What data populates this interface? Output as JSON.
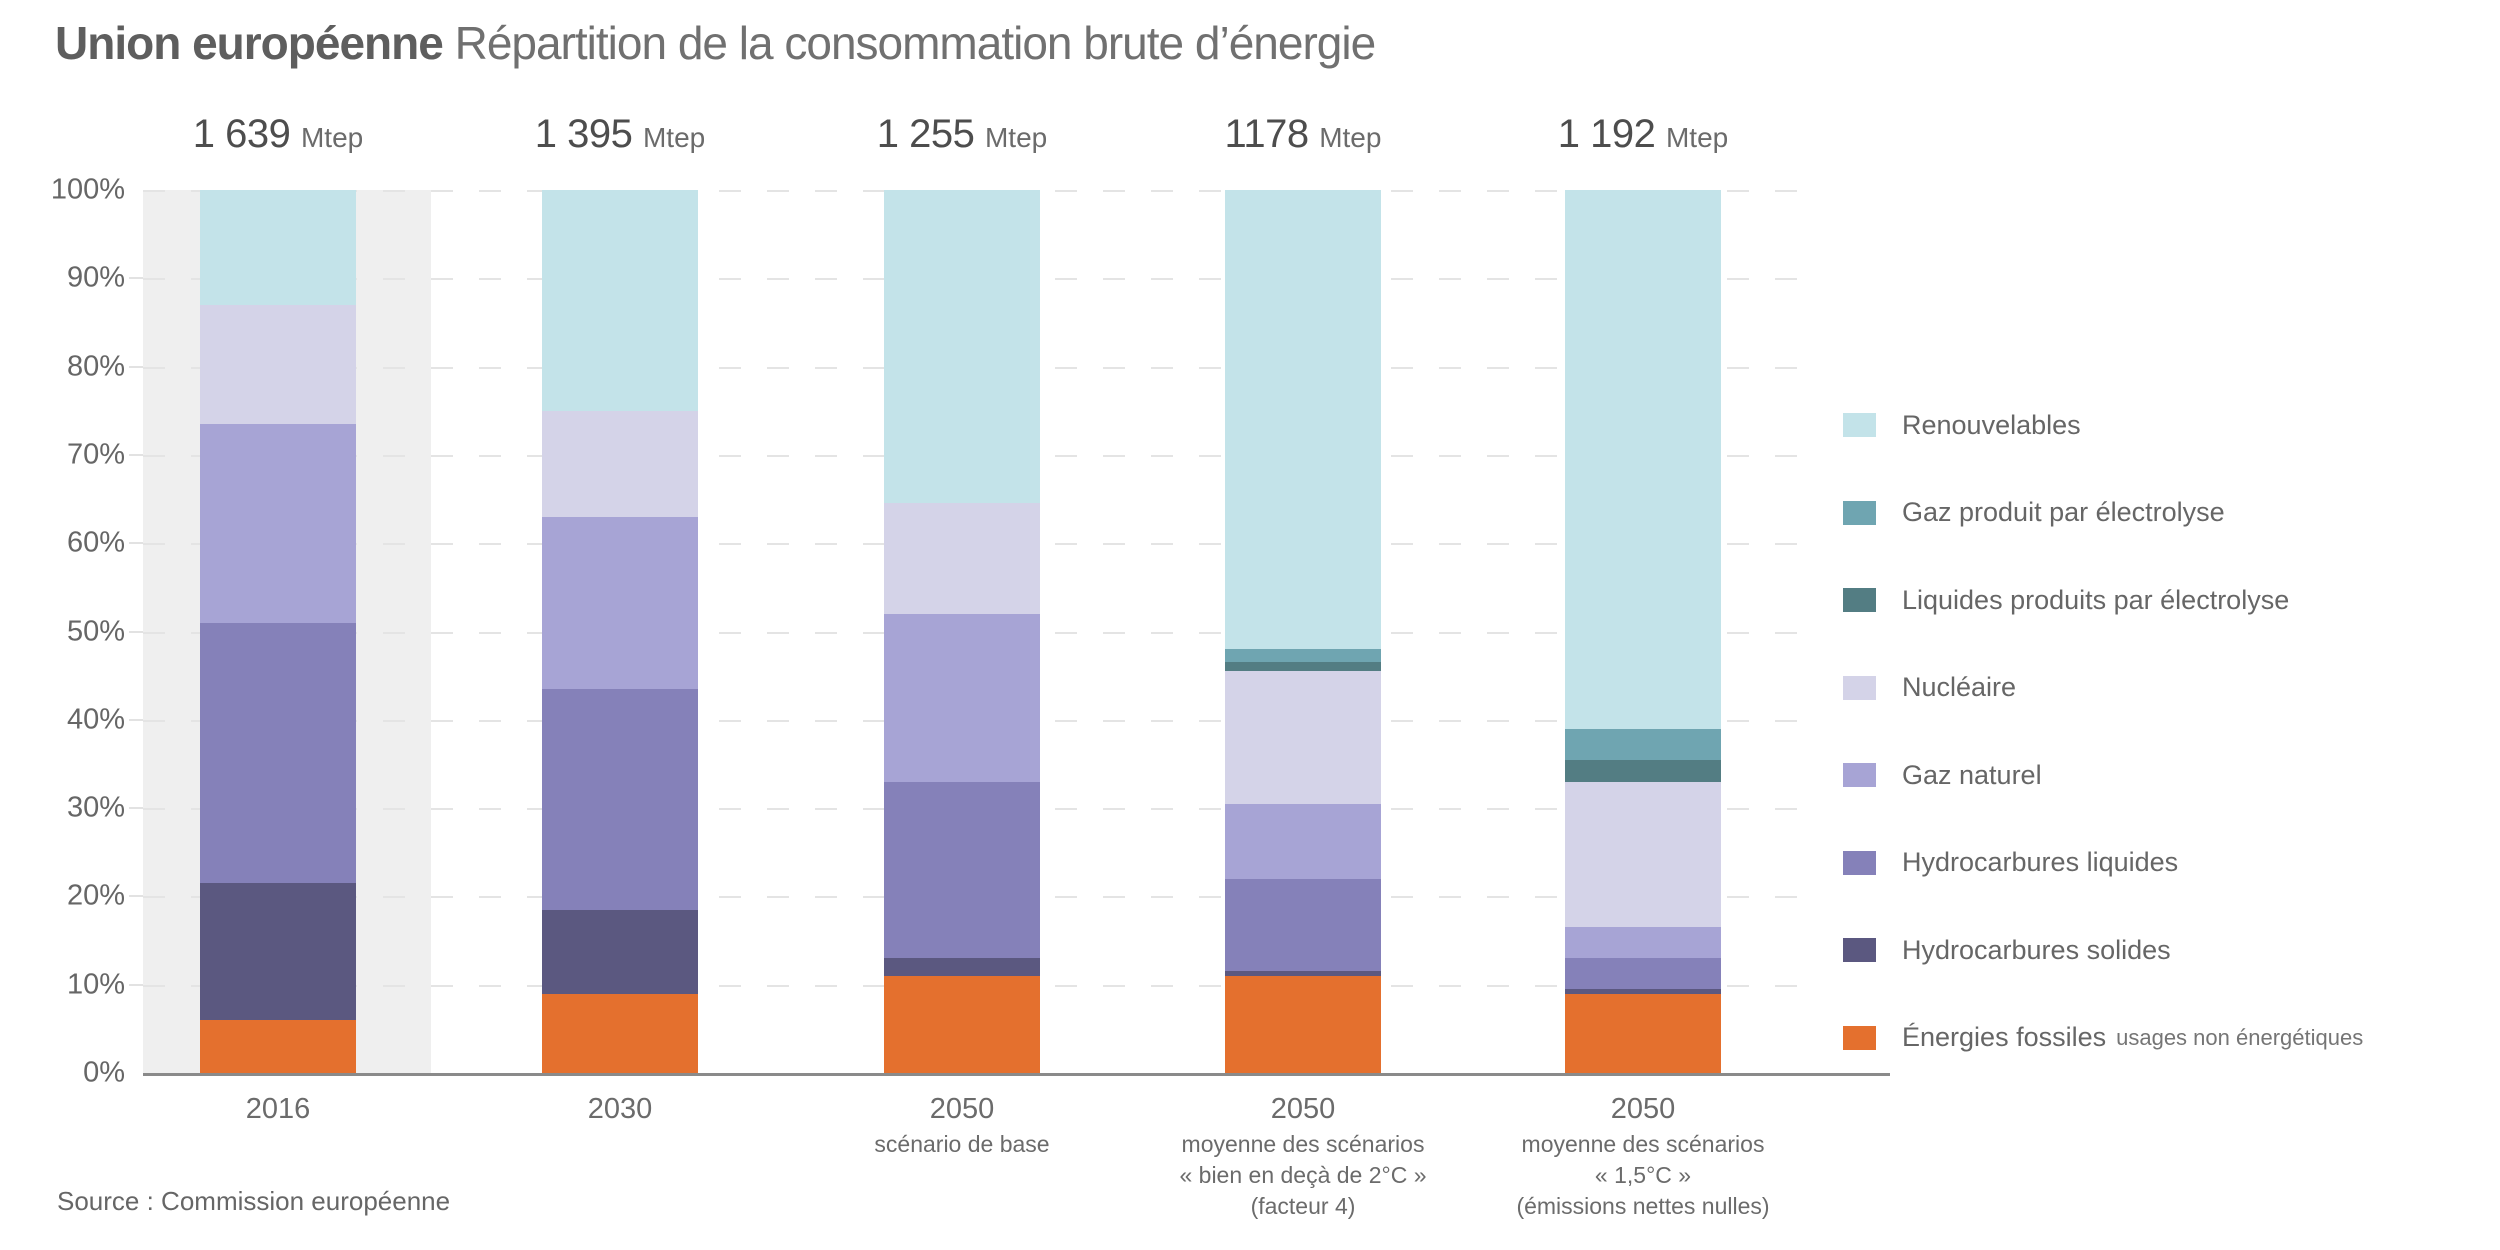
{
  "title": {
    "bold": "Union européenne",
    "regular": " Répartition de la consommation brute d’énergie"
  },
  "source": "Source : Commission européenne",
  "chart_data": {
    "type": "bar",
    "stacked": true,
    "title": "Union européenne — Répartition de la consommation brute d’énergie",
    "ylabel": "",
    "xlabel": "",
    "ylim": [
      0,
      100
    ],
    "grid": "dashed-horizontal",
    "legend_position": "right",
    "unit": "Mtep",
    "y_ticks": [
      "0%",
      "10%",
      "20%",
      "30%",
      "40%",
      "50%",
      "60%",
      "70%",
      "80%",
      "90%",
      "100%"
    ],
    "categories": [
      {
        "lines": [
          "2016"
        ]
      },
      {
        "lines": [
          "2030"
        ]
      },
      {
        "lines": [
          "2050",
          "scénario de base"
        ]
      },
      {
        "lines": [
          "2050",
          "moyenne des scénarios",
          "« bien en deçà de 2°C »",
          "(facteur 4)"
        ]
      },
      {
        "lines": [
          "2050",
          "moyenne des scénarios",
          "« 1,5°C »",
          "(émissions nettes nulles)"
        ]
      }
    ],
    "totals": [
      {
        "value": "1 639",
        "unit": "Mtep"
      },
      {
        "value": "1 395",
        "unit": "Mtep"
      },
      {
        "value": "1 255",
        "unit": "Mtep"
      },
      {
        "value": "1178",
        "unit": "Mtep"
      },
      {
        "value": "1 192",
        "unit": "Mtep"
      }
    ],
    "highlight_category_index": 0,
    "highlight_band_color": "#efefef",
    "series_bottom_to_top": [
      {
        "name": "Énergies fossiles usages non énergétiques",
        "color": "#e4702e",
        "values_percent": [
          6,
          9,
          11,
          11,
          9
        ]
      },
      {
        "name": "Hydrocarbures solides",
        "color": "#5b5880",
        "values_percent": [
          15.5,
          9.5,
          2,
          0.5,
          0.5
        ]
      },
      {
        "name": "Hydrocarbures liquides",
        "color": "#8581b9",
        "values_percent": [
          29.5,
          25,
          20,
          10.5,
          3.5
        ]
      },
      {
        "name": "Gaz naturel",
        "color": "#a7a4d5",
        "values_percent": [
          22.5,
          19.5,
          19,
          8.5,
          3.5
        ]
      },
      {
        "name": "Nucléaire",
        "color": "#d4d3e8",
        "values_percent": [
          13.5,
          12,
          12.5,
          15,
          16.5
        ]
      },
      {
        "name": "Liquides produits par électrolyse",
        "color": "#537d83",
        "values_percent": [
          0,
          0,
          0,
          1,
          2.5
        ]
      },
      {
        "name": "Gaz produit par électrolyse",
        "color": "#6fa5b1",
        "values_percent": [
          0,
          0,
          0,
          1.5,
          3.5
        ]
      },
      {
        "name": "Renouvelables",
        "color": "#c3e3e9",
        "values_percent": [
          13,
          25,
          35.5,
          52,
          61
        ]
      }
    ],
    "legend": [
      {
        "label": "Renouvelables",
        "sublabel": "",
        "color": "#c3e3e9"
      },
      {
        "label": "Gaz produit par électrolyse",
        "sublabel": "",
        "color": "#6fa5b1"
      },
      {
        "label": "Liquides produits par électrolyse",
        "sublabel": "",
        "color": "#537d83"
      },
      {
        "label": "Nucléaire",
        "sublabel": "",
        "color": "#d4d3e8"
      },
      {
        "label": "Gaz naturel",
        "sublabel": "",
        "color": "#a7a4d5"
      },
      {
        "label": "Hydrocarbures liquides",
        "sublabel": "",
        "color": "#8581b9"
      },
      {
        "label": "Hydrocarbures solides",
        "sublabel": "",
        "color": "#5b5880"
      },
      {
        "label": "Énergies fossiles",
        "sublabel": "usages non énergétiques",
        "color": "#e4702e"
      }
    ]
  }
}
